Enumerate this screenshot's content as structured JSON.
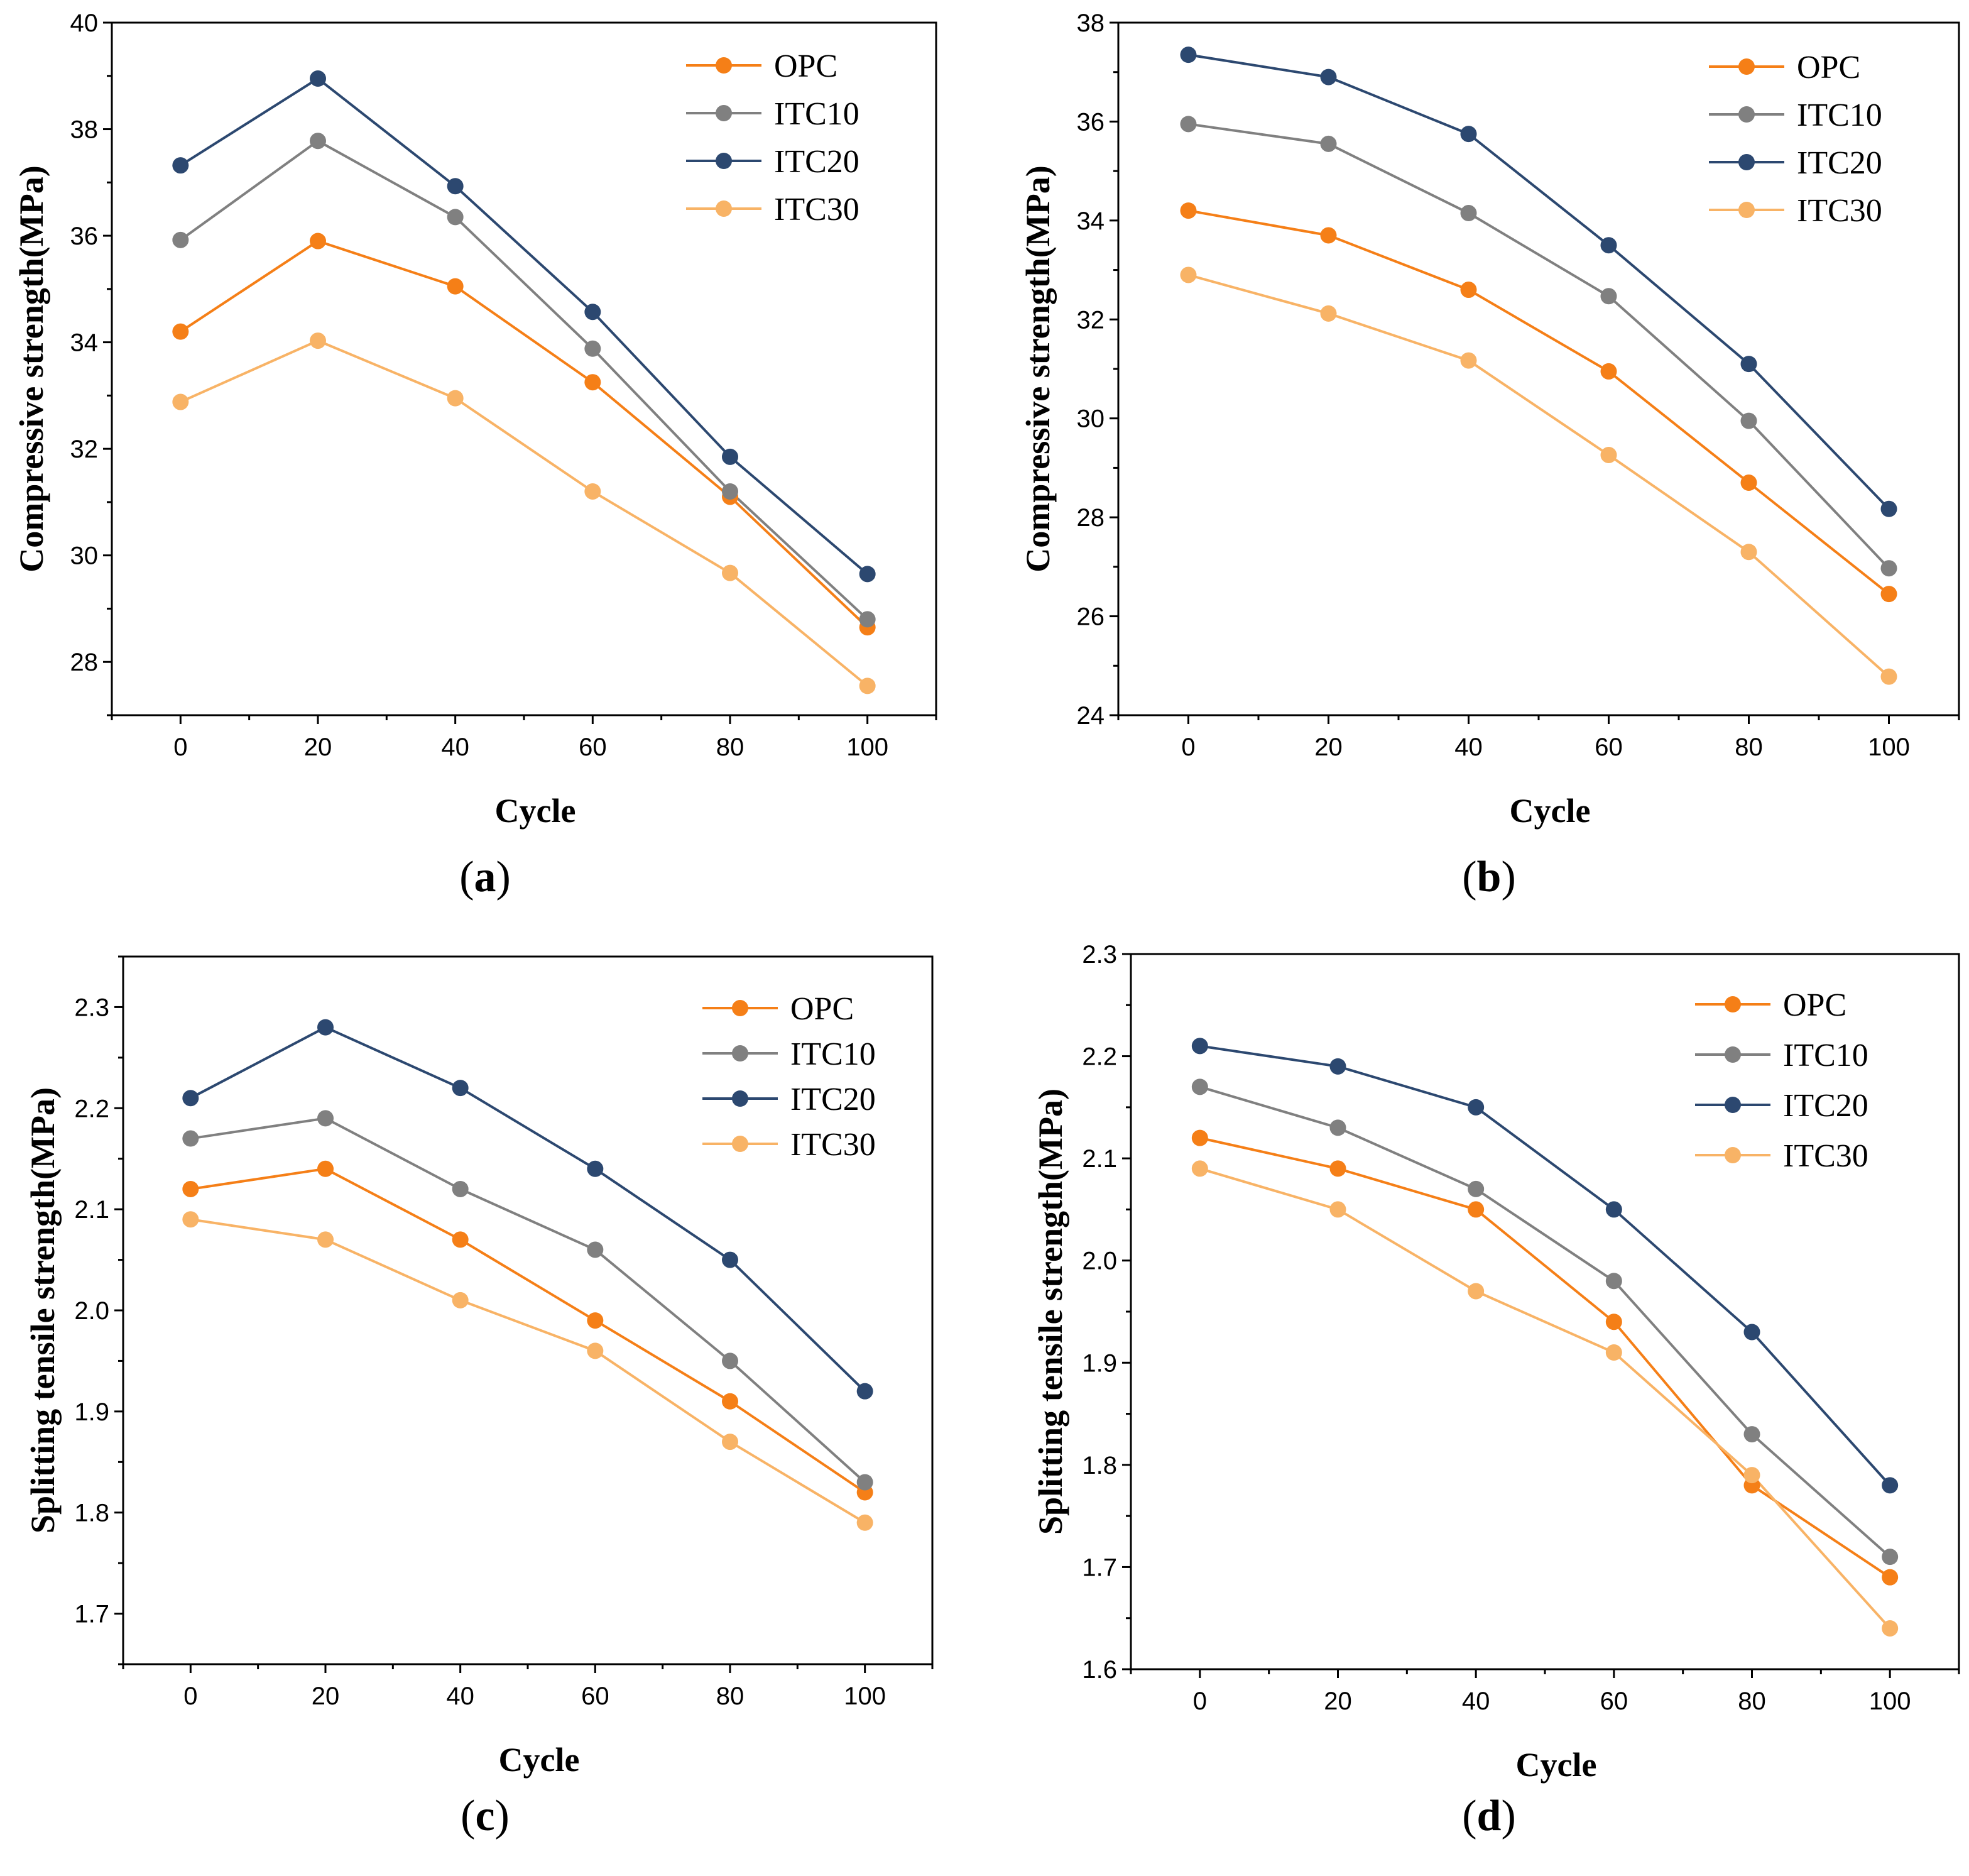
{
  "legend_labels": [
    "OPC",
    "ITC10",
    "ITC20",
    "ITC30"
  ],
  "series_colors": {
    "OPC": "#f57f17",
    "ITC10": "#808080",
    "ITC20": "#2c4870",
    "ITC30": "#f8b366"
  },
  "chart_data": [
    {
      "panel_label": "(a)",
      "type": "line",
      "xlabel": "Cycle",
      "ylabel": "Compressive strength(MPa)",
      "x": [
        0,
        20,
        40,
        60,
        80,
        100
      ],
      "xlim": [
        -10,
        110
      ],
      "xticks": [
        0,
        20,
        40,
        60,
        80,
        100
      ],
      "ylim": [
        27,
        40
      ],
      "yticks": [
        28,
        30,
        32,
        34,
        36,
        38,
        40
      ],
      "legend": "top-right",
      "grid": false,
      "series": [
        {
          "name": "OPC",
          "values": [
            34.2,
            35.9,
            35.05,
            33.25,
            31.1,
            28.65
          ]
        },
        {
          "name": "ITC10",
          "values": [
            35.92,
            37.78,
            36.35,
            33.88,
            31.2,
            28.8
          ]
        },
        {
          "name": "ITC20",
          "values": [
            37.32,
            38.95,
            36.93,
            34.57,
            31.85,
            29.65
          ]
        },
        {
          "name": "ITC30",
          "values": [
            32.88,
            34.03,
            32.95,
            31.2,
            29.67,
            27.55
          ]
        }
      ]
    },
    {
      "panel_label": "(b)",
      "type": "line",
      "xlabel": "Cycle",
      "ylabel": "Compressive strength(MPa)",
      "x": [
        0,
        20,
        40,
        60,
        80,
        100
      ],
      "xlim": [
        -10,
        110
      ],
      "xticks": [
        0,
        20,
        40,
        60,
        80,
        100
      ],
      "ylim": [
        24,
        38
      ],
      "yticks": [
        24,
        26,
        28,
        30,
        32,
        34,
        36,
        38
      ],
      "legend": "top-right",
      "grid": false,
      "series": [
        {
          "name": "OPC",
          "values": [
            34.2,
            33.7,
            32.6,
            30.95,
            28.7,
            26.45
          ]
        },
        {
          "name": "ITC10",
          "values": [
            35.95,
            35.55,
            34.15,
            32.47,
            29.95,
            26.97
          ]
        },
        {
          "name": "ITC20",
          "values": [
            37.35,
            36.9,
            35.75,
            33.5,
            31.1,
            28.17
          ]
        },
        {
          "name": "ITC30",
          "values": [
            32.9,
            32.12,
            31.17,
            29.26,
            27.3,
            24.78
          ]
        }
      ]
    },
    {
      "panel_label": "(c)",
      "type": "line",
      "xlabel": "Cycle",
      "ylabel": "Splitting tensile strength(MPa)",
      "x": [
        0,
        20,
        40,
        60,
        80,
        100
      ],
      "xlim": [
        -10,
        110
      ],
      "xticks": [
        0,
        20,
        40,
        60,
        80,
        100
      ],
      "ylim": [
        1.65,
        2.35
      ],
      "yticks": [
        1.7,
        1.8,
        1.9,
        2.0,
        2.1,
        2.2,
        2.3
      ],
      "tick_labels_y": [
        "1.7",
        "1.8",
        "1.9",
        "2.0",
        "2.1",
        "2.2",
        "2.3"
      ],
      "legend": "top-right",
      "grid": false,
      "series": [
        {
          "name": "OPC",
          "values": [
            2.12,
            2.14,
            2.07,
            1.99,
            1.91,
            1.82
          ]
        },
        {
          "name": "ITC10",
          "values": [
            2.17,
            2.19,
            2.12,
            2.06,
            1.95,
            1.83
          ]
        },
        {
          "name": "ITC20",
          "values": [
            2.21,
            2.28,
            2.22,
            2.14,
            2.05,
            1.92
          ]
        },
        {
          "name": "ITC30",
          "values": [
            2.09,
            2.07,
            2.01,
            1.96,
            1.87,
            1.79
          ]
        }
      ]
    },
    {
      "panel_label": "(d)",
      "type": "line",
      "xlabel": "Cycle",
      "ylabel": "Splitting tensile strength(MPa)",
      "x": [
        0,
        20,
        40,
        60,
        80,
        100
      ],
      "xlim": [
        -10,
        110
      ],
      "xticks": [
        0,
        20,
        40,
        60,
        80,
        100
      ],
      "ylim": [
        1.6,
        2.3
      ],
      "yticks": [
        1.6,
        1.7,
        1.8,
        1.9,
        2.0,
        2.1,
        2.2,
        2.3
      ],
      "tick_labels_y": [
        "1.6",
        "1.7",
        "1.8",
        "1.9",
        "2.0",
        "2.1",
        "2.2",
        "2.3"
      ],
      "legend": "top-right",
      "grid": false,
      "series": [
        {
          "name": "OPC",
          "values": [
            2.12,
            2.09,
            2.05,
            1.94,
            1.78,
            1.69
          ]
        },
        {
          "name": "ITC10",
          "values": [
            2.17,
            2.13,
            2.07,
            1.98,
            1.83,
            1.71
          ]
        },
        {
          "name": "ITC20",
          "values": [
            2.21,
            2.19,
            2.15,
            2.05,
            1.93,
            1.78
          ]
        },
        {
          "name": "ITC30",
          "values": [
            2.09,
            2.05,
            1.97,
            1.91,
            1.79,
            1.64
          ]
        }
      ]
    }
  ]
}
